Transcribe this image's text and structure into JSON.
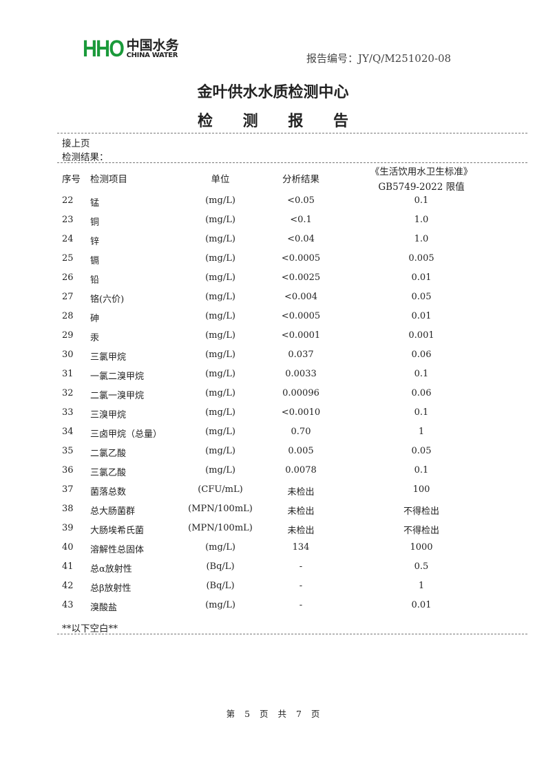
{
  "header": {
    "logo_mark": "HHO",
    "logo_cn": "中国水务",
    "logo_en": "CHINA WATER",
    "report_no": "报告编号：JY/Q/M251020-08",
    "brand_color": "#1a9a3a"
  },
  "title": "金叶供水水质检测中心",
  "subtitle": "检 测 报 告",
  "continued": "接上页",
  "results_label": "检测结果：",
  "columns": {
    "no": "序号",
    "item": "检测项目",
    "unit": "单位",
    "result": "分析结果",
    "limit_line1": "《生活饮用水卫生标准》",
    "limit_line2": "GB5749-2022 限值"
  },
  "rows": [
    [
      "22",
      "锰",
      "(mg/L)",
      "<0.05",
      "0.1"
    ],
    [
      "23",
      "铜",
      "(mg/L)",
      "<0.1",
      "1.0"
    ],
    [
      "24",
      "锌",
      "(mg/L)",
      "<0.04",
      "1.0"
    ],
    [
      "25",
      "镉",
      "(mg/L)",
      "<0.0005",
      "0.005"
    ],
    [
      "26",
      "铅",
      "(mg/L)",
      "<0.0025",
      "0.01"
    ],
    [
      "27",
      "铬(六价)",
      "(mg/L)",
      "<0.004",
      "0.05"
    ],
    [
      "28",
      "砷",
      "(mg/L)",
      "<0.0005",
      "0.01"
    ],
    [
      "29",
      "汞",
      "(mg/L)",
      "<0.0001",
      "0.001"
    ],
    [
      "30",
      "三氯甲烷",
      "(mg/L)",
      "0.037",
      "0.06"
    ],
    [
      "31",
      "一氯二溴甲烷",
      "(mg/L)",
      "0.0033",
      "0.1"
    ],
    [
      "32",
      "二氯一溴甲烷",
      "(mg/L)",
      "0.00096",
      "0.06"
    ],
    [
      "33",
      "三溴甲烷",
      "(mg/L)",
      "<0.0010",
      "0.1"
    ],
    [
      "34",
      "三卤甲烷（总量）",
      "(mg/L)",
      "0.70",
      "1"
    ],
    [
      "35",
      "二氯乙酸",
      "(mg/L)",
      "0.005",
      "0.05"
    ],
    [
      "36",
      "三氯乙酸",
      "(mg/L)",
      "0.0078",
      "0.1"
    ],
    [
      "37",
      "菌落总数",
      "(CFU/mL)",
      "未检出",
      "100"
    ],
    [
      "38",
      "总大肠菌群",
      "(MPN/100mL)",
      "未检出",
      "不得检出"
    ],
    [
      "39",
      "大肠埃希氏菌",
      "(MPN/100mL)",
      "未检出",
      "不得检出"
    ],
    [
      "40",
      "溶解性总固体",
      "(mg/L)",
      "134",
      "1000"
    ],
    [
      "41",
      "总α放射性",
      "(Bq/L)",
      "-",
      "0.5"
    ],
    [
      "42",
      "总β放射性",
      "(Bq/L)",
      "-",
      "1"
    ],
    [
      "43",
      "溴酸盐",
      "(mg/L)",
      "-",
      "0.01"
    ]
  ],
  "end_note": "**以下空白**",
  "footer": "第 5 页 共 7 页"
}
